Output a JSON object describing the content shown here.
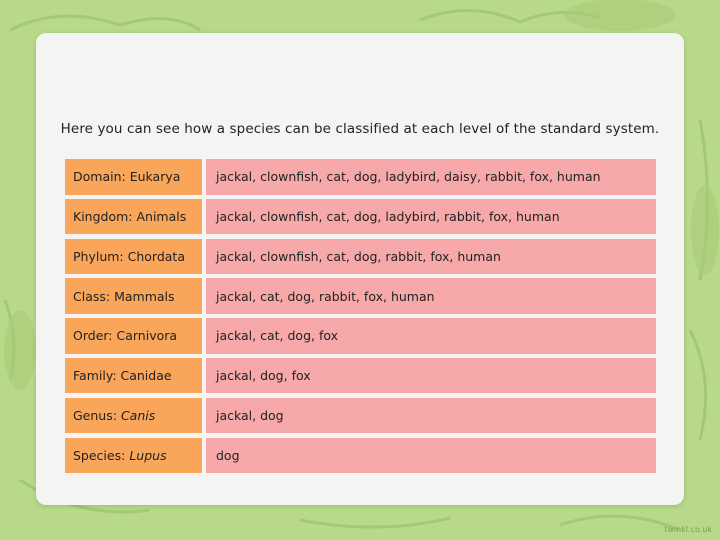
{
  "intro": "Here you can see how a species can be classified at each level of the standard system.",
  "rows": [
    {
      "level": "Domain: Eukarya",
      "level_italic": "",
      "members": "jackal, clownfish, cat, dog, ladybird, daisy, rabbit, fox, human"
    },
    {
      "level": "Kingdom: Animals",
      "level_italic": "",
      "members": "jackal, clownfish, cat, dog, ladybird, rabbit, fox, human"
    },
    {
      "level": "Phylum: Chordata",
      "level_italic": "",
      "members": "jackal, clownfish, cat, dog, rabbit, fox, human"
    },
    {
      "level": "Class: Mammals",
      "level_italic": "",
      "members": "jackal, cat, dog, rabbit, fox, human"
    },
    {
      "level": "Order: Carnivora",
      "level_italic": "",
      "members": "jackal, cat, dog, fox"
    },
    {
      "level": "Family: Canidae",
      "level_italic": "",
      "members": "jackal, dog, fox"
    },
    {
      "level": "Genus:",
      "level_italic": "Canis",
      "members": "jackal, dog"
    },
    {
      "level": "Species:",
      "level_italic": "Lupus",
      "members": "dog"
    }
  ],
  "logo": "twinkl.co.uk",
  "colors": {
    "background": "#b9d98a",
    "panel": "#f4f4f2",
    "level_cell": "#f9a65a",
    "members_cell": "#f7a9a9"
  }
}
